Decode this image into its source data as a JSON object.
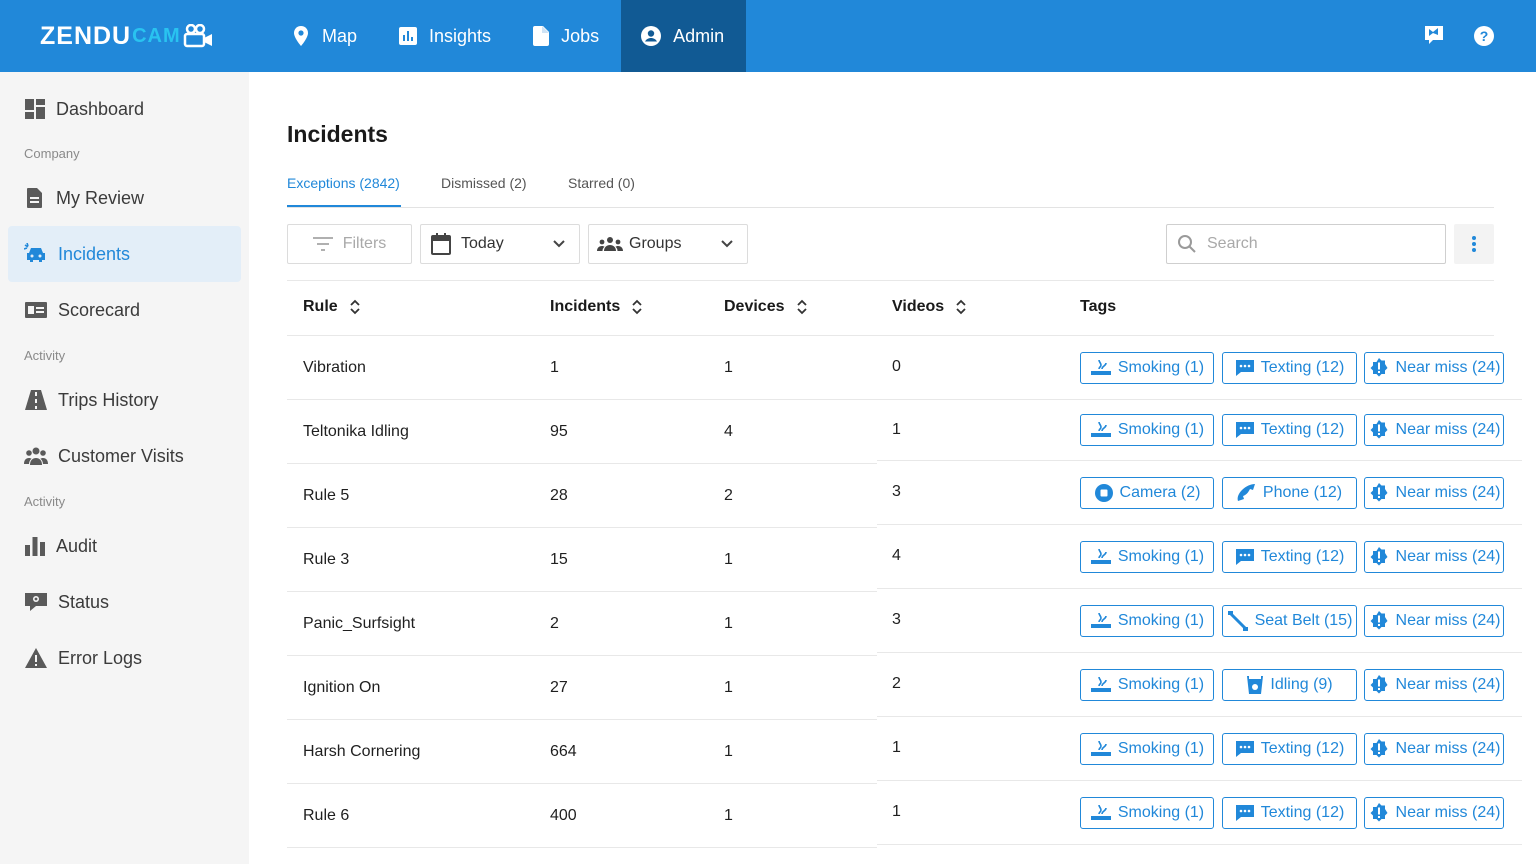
{
  "brand": {
    "name_main": "ZENDU",
    "name_sub": "CAM",
    "icon": "camera-icon",
    "accent": "#2188d9",
    "active_nav": "#115a94"
  },
  "nav": [
    {
      "label": "Map",
      "icon": "map-pin-icon"
    },
    {
      "label": "Insights",
      "icon": "chart-icon"
    },
    {
      "label": "Jobs",
      "icon": "document-icon"
    },
    {
      "label": "Admin",
      "icon": "account-circle-icon",
      "active": true
    }
  ],
  "top_right": [
    "flag-icon",
    "help-icon"
  ],
  "sidebar": {
    "items": [
      {
        "label": "Dashboard",
        "icon": "dashboard-icon"
      },
      {
        "label": "My Review",
        "icon": "review-document-icon"
      },
      {
        "label": "Incidents",
        "icon": "car-crash-icon",
        "active": true
      },
      {
        "label": "Scorecard",
        "icon": "id-card-icon"
      },
      {
        "label": "Trips History",
        "icon": "road-icon"
      },
      {
        "label": "Customer Visits",
        "icon": "people-icon"
      },
      {
        "label": "Audit",
        "icon": "bar-chart-icon"
      },
      {
        "label": "Status",
        "icon": "status-icon"
      },
      {
        "label": "Error Logs",
        "icon": "warning-icon"
      }
    ],
    "sections": [
      "Company",
      "Activity",
      "Activity"
    ]
  },
  "page": {
    "title": "Incidents",
    "tabs": [
      {
        "label": "Exceptions (2842)",
        "active": true
      },
      {
        "label": "Dismissed (2)"
      },
      {
        "label": "Starred (0)"
      }
    ],
    "filters_label": "Filters",
    "date_label": "Today",
    "groups_label": "Groups",
    "search_placeholder": "Search"
  },
  "table": {
    "columns": [
      "Rule",
      "Incidents",
      "Devices",
      "Videos",
      "Tags"
    ],
    "rows": [
      {
        "rule": "Vibration",
        "incidents": "1",
        "devices": "1",
        "videos": "0",
        "tags": [
          {
            "label": "Smoking (1)",
            "icon": "smoking-icon"
          },
          {
            "label": "Texting (12)",
            "icon": "message-icon"
          },
          {
            "label": "Near miss (24)",
            "icon": "alert-badge-icon"
          }
        ]
      },
      {
        "rule": "Teltonika Idling",
        "incidents": "95",
        "devices": "4",
        "videos": "1",
        "tags": [
          {
            "label": "Smoking (1)",
            "icon": "smoking-icon"
          },
          {
            "label": "Texting (12)",
            "icon": "message-icon"
          },
          {
            "label": "Near miss (24)",
            "icon": "alert-badge-icon"
          }
        ]
      },
      {
        "rule": "Rule 5",
        "incidents": "28",
        "devices": "2",
        "videos": "3",
        "tags": [
          {
            "label": "Camera (2)",
            "icon": "camera-stop-icon"
          },
          {
            "label": "Phone (12)",
            "icon": "phone-icon"
          },
          {
            "label": "Near miss (24)",
            "icon": "alert-badge-icon"
          }
        ]
      },
      {
        "rule": "Rule 3",
        "incidents": "15",
        "devices": "1",
        "videos": "4",
        "tags": [
          {
            "label": "Smoking (1)",
            "icon": "smoking-icon"
          },
          {
            "label": "Texting (12)",
            "icon": "message-icon"
          },
          {
            "label": "Near miss (24)",
            "icon": "alert-badge-icon"
          }
        ]
      },
      {
        "rule": "Panic_Surfsight",
        "incidents": "2",
        "devices": "1",
        "videos": "3",
        "tags": [
          {
            "label": "Smoking (1)",
            "icon": "smoking-icon"
          },
          {
            "label": "Seat Belt (15)",
            "icon": "seat-belt-icon"
          },
          {
            "label": "Near miss (24)",
            "icon": "alert-badge-icon"
          }
        ]
      },
      {
        "rule": "Ignition On",
        "incidents": "27",
        "devices": "1",
        "videos": "2",
        "tags": [
          {
            "label": "Smoking (1)",
            "icon": "smoking-icon"
          },
          {
            "label": "Idling (9)",
            "icon": "idling-icon"
          },
          {
            "label": "Near miss (24)",
            "icon": "alert-badge-icon"
          }
        ]
      },
      {
        "rule": "Harsh Cornering",
        "incidents": "664",
        "devices": "1",
        "videos": "1",
        "tags": [
          {
            "label": "Smoking (1)",
            "icon": "smoking-icon"
          },
          {
            "label": "Texting (12)",
            "icon": "message-icon"
          },
          {
            "label": "Near miss (24)",
            "icon": "alert-badge-icon"
          }
        ]
      },
      {
        "rule": "Rule 6",
        "incidents": "400",
        "devices": "1",
        "videos": "1",
        "tags": [
          {
            "label": "Smoking (1)",
            "icon": "smoking-icon"
          },
          {
            "label": "Texting (12)",
            "icon": "message-icon"
          },
          {
            "label": "Near miss (24)",
            "icon": "alert-badge-icon"
          }
        ]
      }
    ]
  }
}
